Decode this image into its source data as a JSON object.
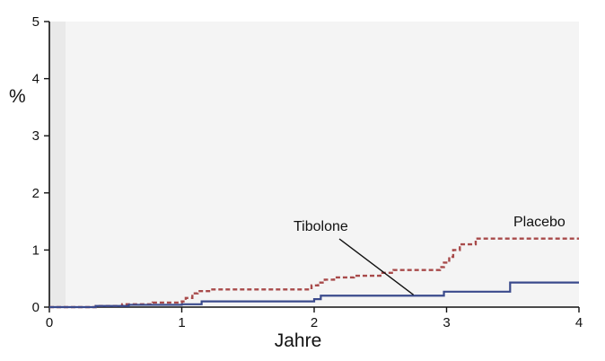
{
  "chart_data": {
    "type": "line",
    "title": "",
    "xlabel": "Jahre",
    "ylabel": "%",
    "xlim": [
      0,
      4
    ],
    "ylim": [
      0,
      5
    ],
    "x_ticks": [
      "0",
      "1",
      "2",
      "3",
      "4"
    ],
    "y_ticks": [
      "0",
      "1",
      "2",
      "3",
      "4",
      "5"
    ],
    "grid": false,
    "step": true,
    "series": [
      {
        "name": "Placebo",
        "color": "#a84a4a",
        "style": "dashed",
        "x": [
          0,
          0.35,
          0.55,
          0.78,
          1.0,
          1.03,
          1.08,
          1.12,
          1.22,
          1.98,
          2.03,
          2.08,
          2.15,
          2.3,
          2.5,
          2.6,
          2.95,
          2.98,
          3.02,
          3.05,
          3.1,
          3.22,
          4.0
        ],
        "values": [
          0.0,
          0.02,
          0.05,
          0.08,
          0.1,
          0.16,
          0.24,
          0.28,
          0.31,
          0.38,
          0.43,
          0.48,
          0.52,
          0.55,
          0.6,
          0.65,
          0.7,
          0.78,
          0.88,
          1.0,
          1.1,
          1.2,
          1.2
        ]
      },
      {
        "name": "Tibolone",
        "color": "#3a4a8c",
        "style": "solid",
        "x": [
          0,
          0.35,
          0.6,
          1.0,
          1.15,
          2.0,
          2.05,
          2.98,
          3.48,
          4.0
        ],
        "values": [
          0.0,
          0.02,
          0.04,
          0.05,
          0.1,
          0.14,
          0.2,
          0.27,
          0.43,
          0.43
        ]
      }
    ],
    "annotations": [
      {
        "text": "Tibolone",
        "points_to_x": 2.75,
        "points_to_y": 0.2
      },
      {
        "text": "Placebo"
      }
    ]
  }
}
